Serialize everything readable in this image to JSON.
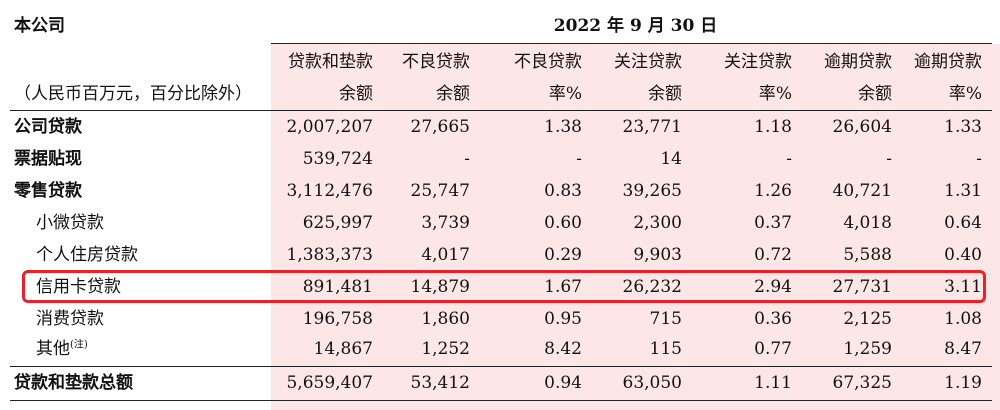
{
  "company_label": "本公司",
  "date_header": "2022 年 9 月 30 日",
  "unit_note": "（人民币百万元，百分比除外）",
  "columns": [
    {
      "line1": "贷款和垫款",
      "line2": "余额"
    },
    {
      "line1": "不良贷款",
      "line2": "余额"
    },
    {
      "line1": "不良贷款",
      "line2": "率%"
    },
    {
      "line1": "关注贷款",
      "line2": "余额"
    },
    {
      "line1": "关注贷款",
      "line2": "率%"
    },
    {
      "line1": "逾期贷款",
      "line2": "余额"
    },
    {
      "line1": "逾期贷款",
      "line2": "率%"
    }
  ],
  "rows": [
    {
      "label": "公司贷款",
      "note": "",
      "values": [
        "2,007,207",
        "27,665",
        "1.38",
        "23,771",
        "1.18",
        "26,604",
        "1.33"
      ]
    },
    {
      "label": "票据贴现",
      "note": "",
      "values": [
        "539,724",
        "-",
        "-",
        "14",
        "-",
        "-",
        "-"
      ]
    },
    {
      "label": "零售贷款",
      "note": "",
      "values": [
        "3,112,476",
        "25,747",
        "0.83",
        "39,265",
        "1.26",
        "40,721",
        "1.31"
      ]
    },
    {
      "label": "小微贷款",
      "note": "",
      "values": [
        "625,997",
        "3,739",
        "0.60",
        "2,300",
        "0.37",
        "4,018",
        "0.64"
      ]
    },
    {
      "label": "个人住房贷款",
      "note": "",
      "values": [
        "1,383,373",
        "4,017",
        "0.29",
        "9,903",
        "0.72",
        "5,588",
        "0.40"
      ]
    },
    {
      "label": "信用卡贷款",
      "note": "",
      "values": [
        "891,481",
        "14,879",
        "1.67",
        "26,232",
        "2.94",
        "27,731",
        "3.11"
      ]
    },
    {
      "label": "消费贷款",
      "note": "",
      "values": [
        "196,758",
        "1,860",
        "0.95",
        "715",
        "0.36",
        "2,125",
        "1.08"
      ]
    },
    {
      "label": "其他",
      "note": "(注)",
      "values": [
        "14,867",
        "1,252",
        "8.42",
        "115",
        "0.77",
        "1,259",
        "8.47"
      ]
    },
    {
      "label": "贷款和垫款总额",
      "note": "",
      "values": [
        "5,659,407",
        "53,412",
        "0.94",
        "63,050",
        "1.11",
        "67,325",
        "1.19"
      ]
    }
  ]
}
